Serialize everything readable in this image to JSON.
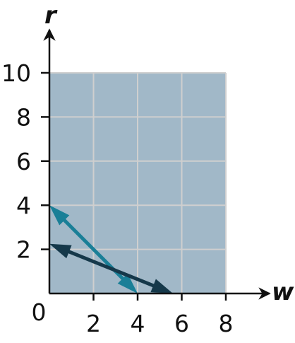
{
  "chart_data": {
    "type": "line",
    "title": "",
    "xlabel": "w",
    "ylabel": "r",
    "xlim": [
      0,
      8
    ],
    "ylim": [
      0,
      10
    ],
    "x_ticks": [
      "2",
      "4",
      "6",
      "8"
    ],
    "y_ticks": [
      "2",
      "4",
      "6",
      "8",
      "10"
    ],
    "origin_label": "0",
    "grid": true,
    "feasible_region": {
      "x": [
        0,
        8
      ],
      "y": [
        0,
        10
      ],
      "color": "#a1b8c8"
    },
    "series": [
      {
        "points": [
          [
            0,
            4
          ],
          [
            4,
            0
          ]
        ],
        "color": "#1a7f97"
      },
      {
        "points": [
          [
            0,
            2.25
          ],
          [
            5.6,
            0
          ]
        ],
        "color": "#15384a"
      }
    ]
  }
}
